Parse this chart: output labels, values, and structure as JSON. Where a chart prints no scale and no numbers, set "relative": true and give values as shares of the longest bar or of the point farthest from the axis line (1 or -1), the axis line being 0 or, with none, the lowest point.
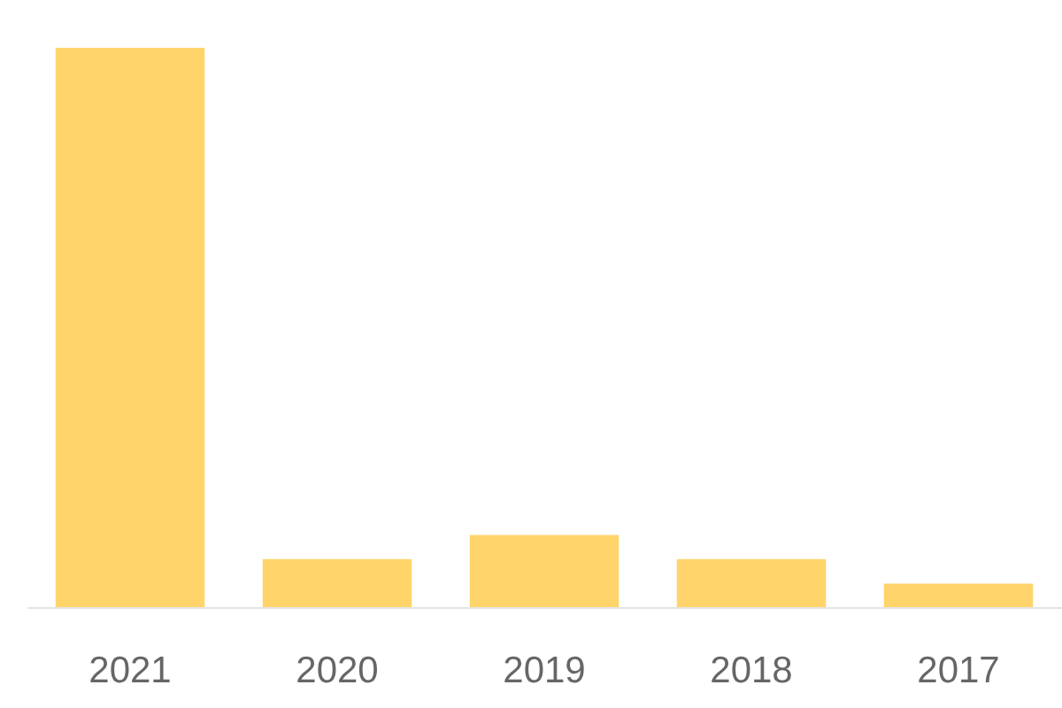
{
  "chart_data": {
    "type": "bar",
    "relative": true,
    "categories": [
      "2021",
      "2020",
      "2019",
      "2018",
      "2017"
    ],
    "values": [
      1,
      0.086,
      0.129,
      0.086,
      0.042
    ],
    "color": "#fed46b",
    "grid": false,
    "legend": false
  }
}
